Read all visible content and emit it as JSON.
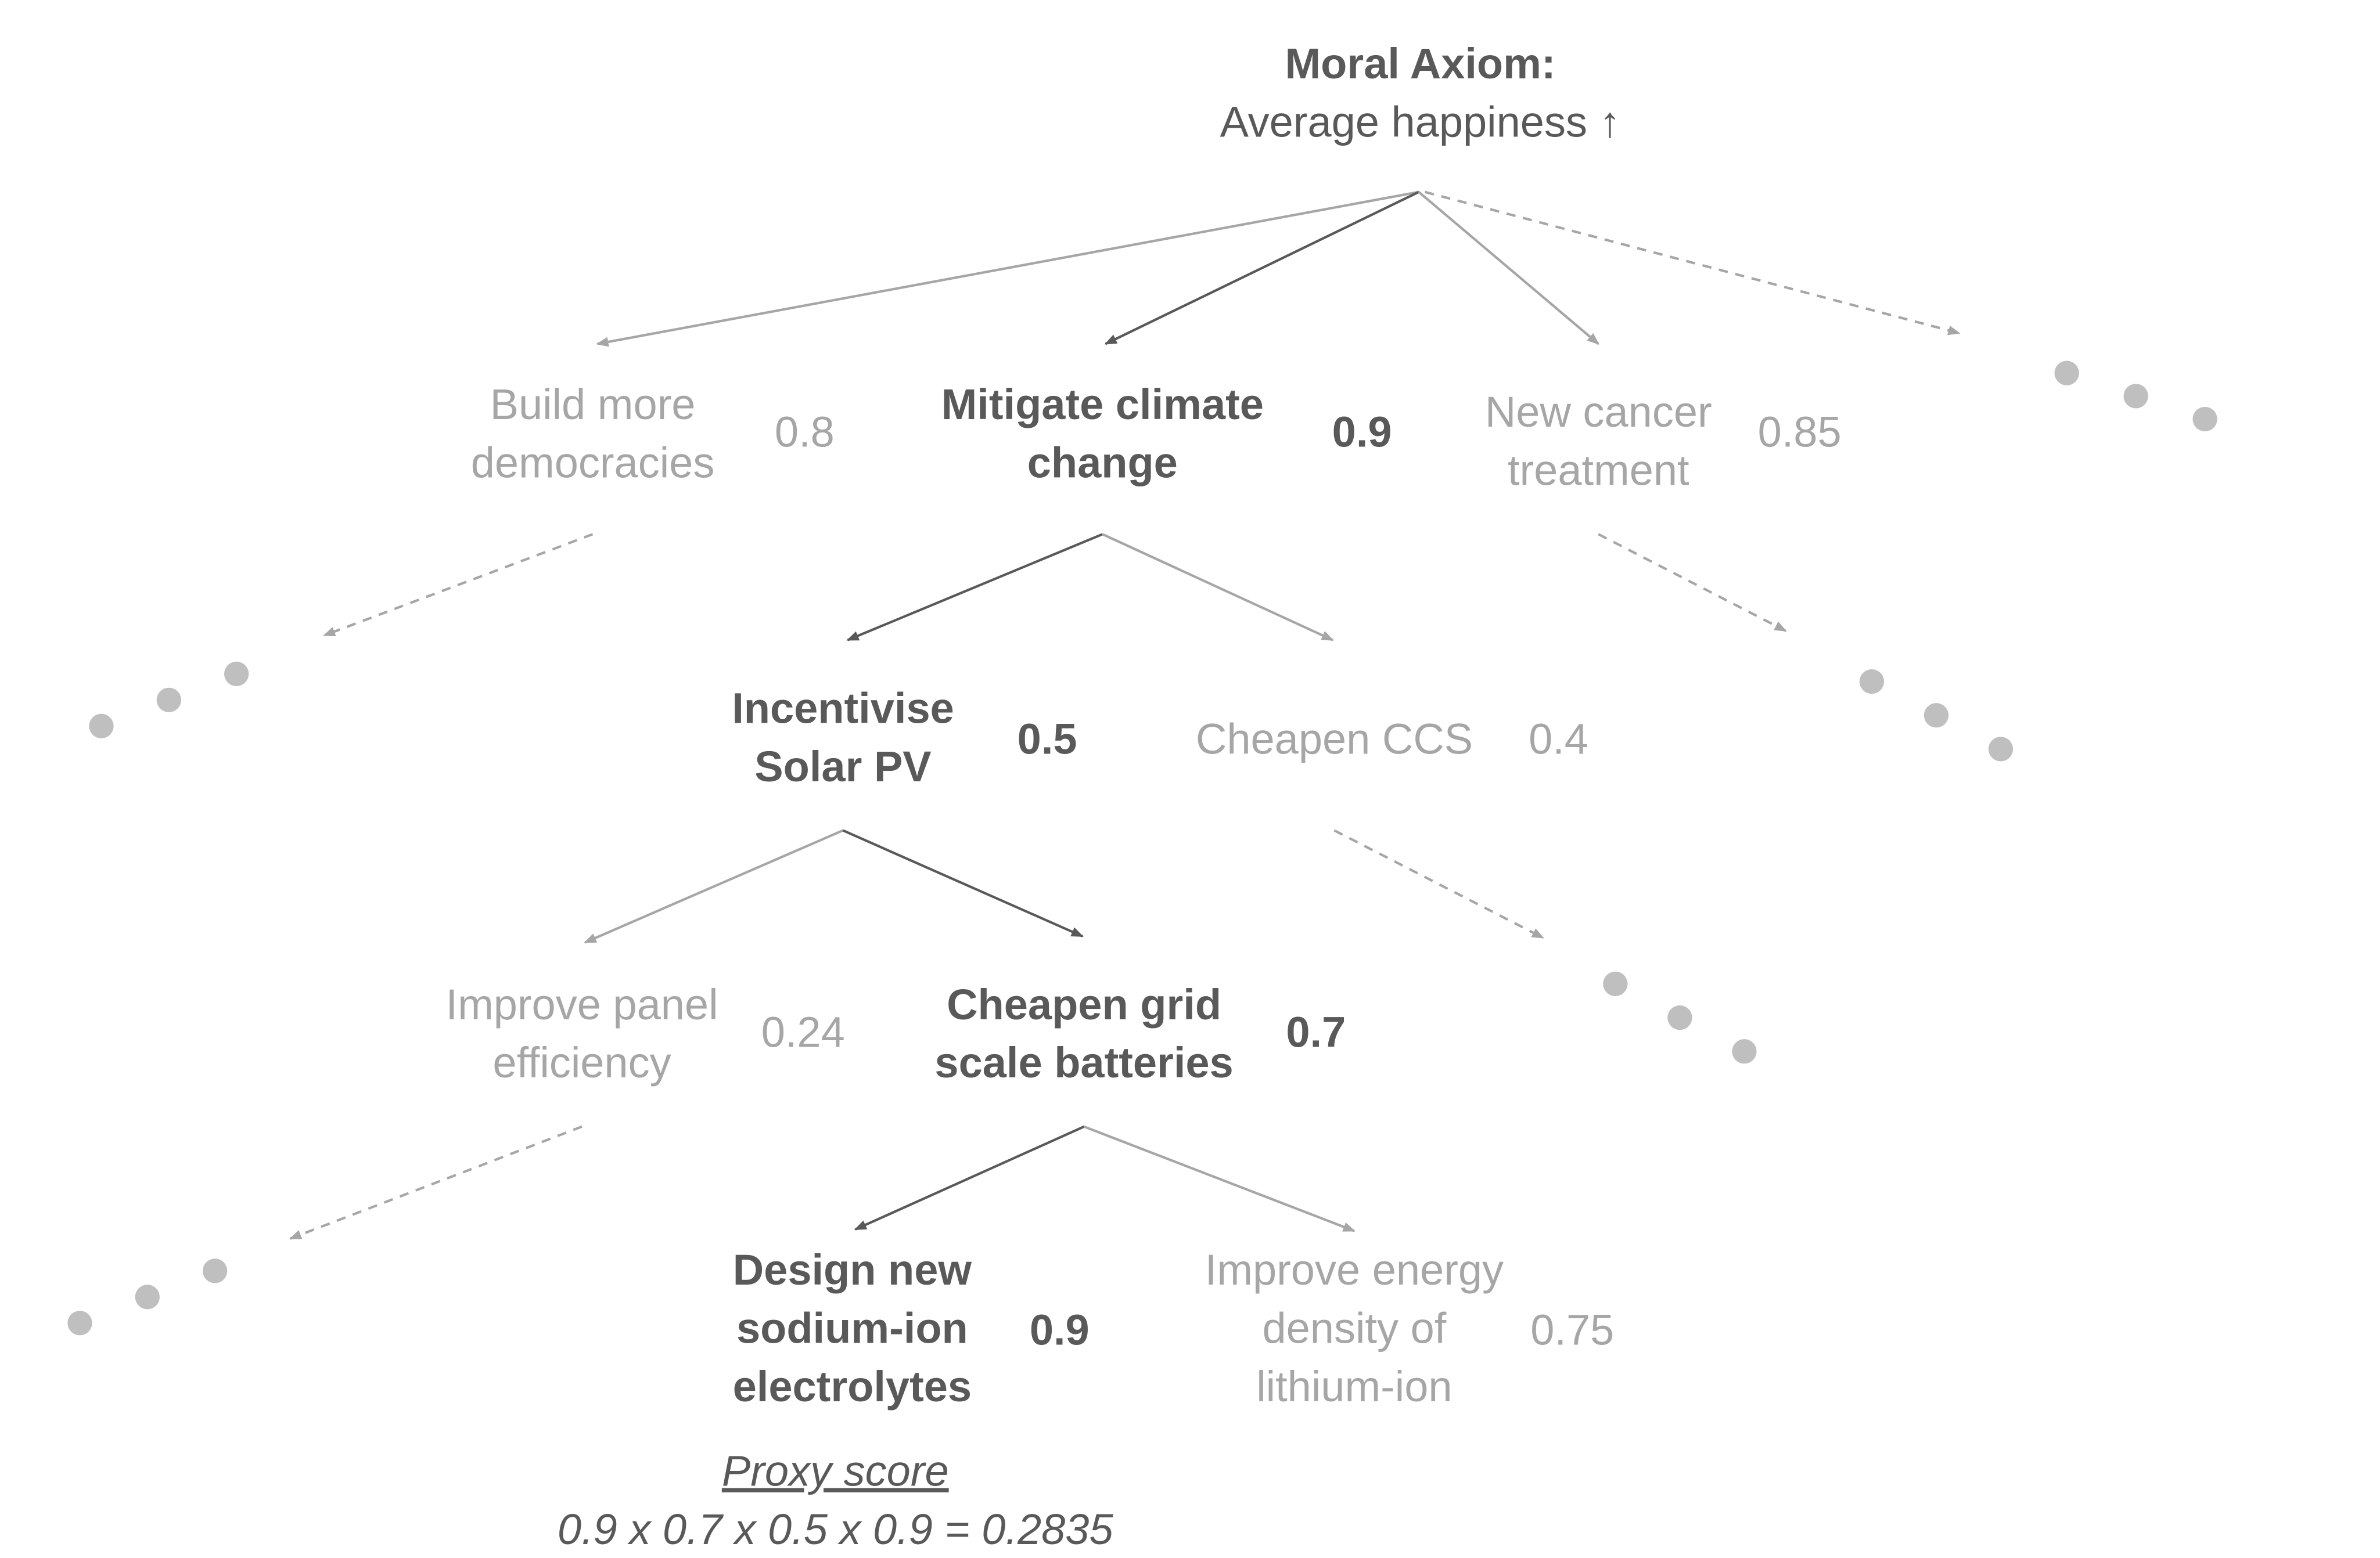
{
  "axiom": {
    "title": "Moral Axiom:",
    "subtitle": "Average happiness ↑"
  },
  "nodes": {
    "democracies": {
      "line1": "Build more",
      "line2": "democracies",
      "score": "0.8"
    },
    "climate": {
      "line1": "Mitigate climate",
      "line2": "change",
      "score": "0.9"
    },
    "cancer": {
      "line1": "New cancer",
      "line2": "treatment",
      "score": "0.85"
    },
    "solar": {
      "line1": "Incentivise",
      "line2": "Solar PV",
      "score": "0.5"
    },
    "ccs": {
      "line1": "Cheapen CCS",
      "score": "0.4"
    },
    "panel": {
      "line1": "Improve panel",
      "line2": "efficiency",
      "score": "0.24"
    },
    "batteries": {
      "line1": "Cheapen grid",
      "line2": "scale batteries",
      "score": "0.7"
    },
    "sodium": {
      "line1": "Design new",
      "line2": "sodium-ion",
      "line3": "electrolytes",
      "score": "0.9"
    },
    "lithium": {
      "line1": "Improve energy",
      "line2": "density of",
      "line3": "lithium-ion",
      "score": "0.75"
    }
  },
  "proxy": {
    "label": "Proxy score",
    "formula": "0.9 x 0.7 x 0.5 x 0.9 = 0.2835"
  },
  "colors": {
    "selected": "#595959",
    "unselected": "#a6a6a6",
    "dots": "#bfbfbf"
  }
}
